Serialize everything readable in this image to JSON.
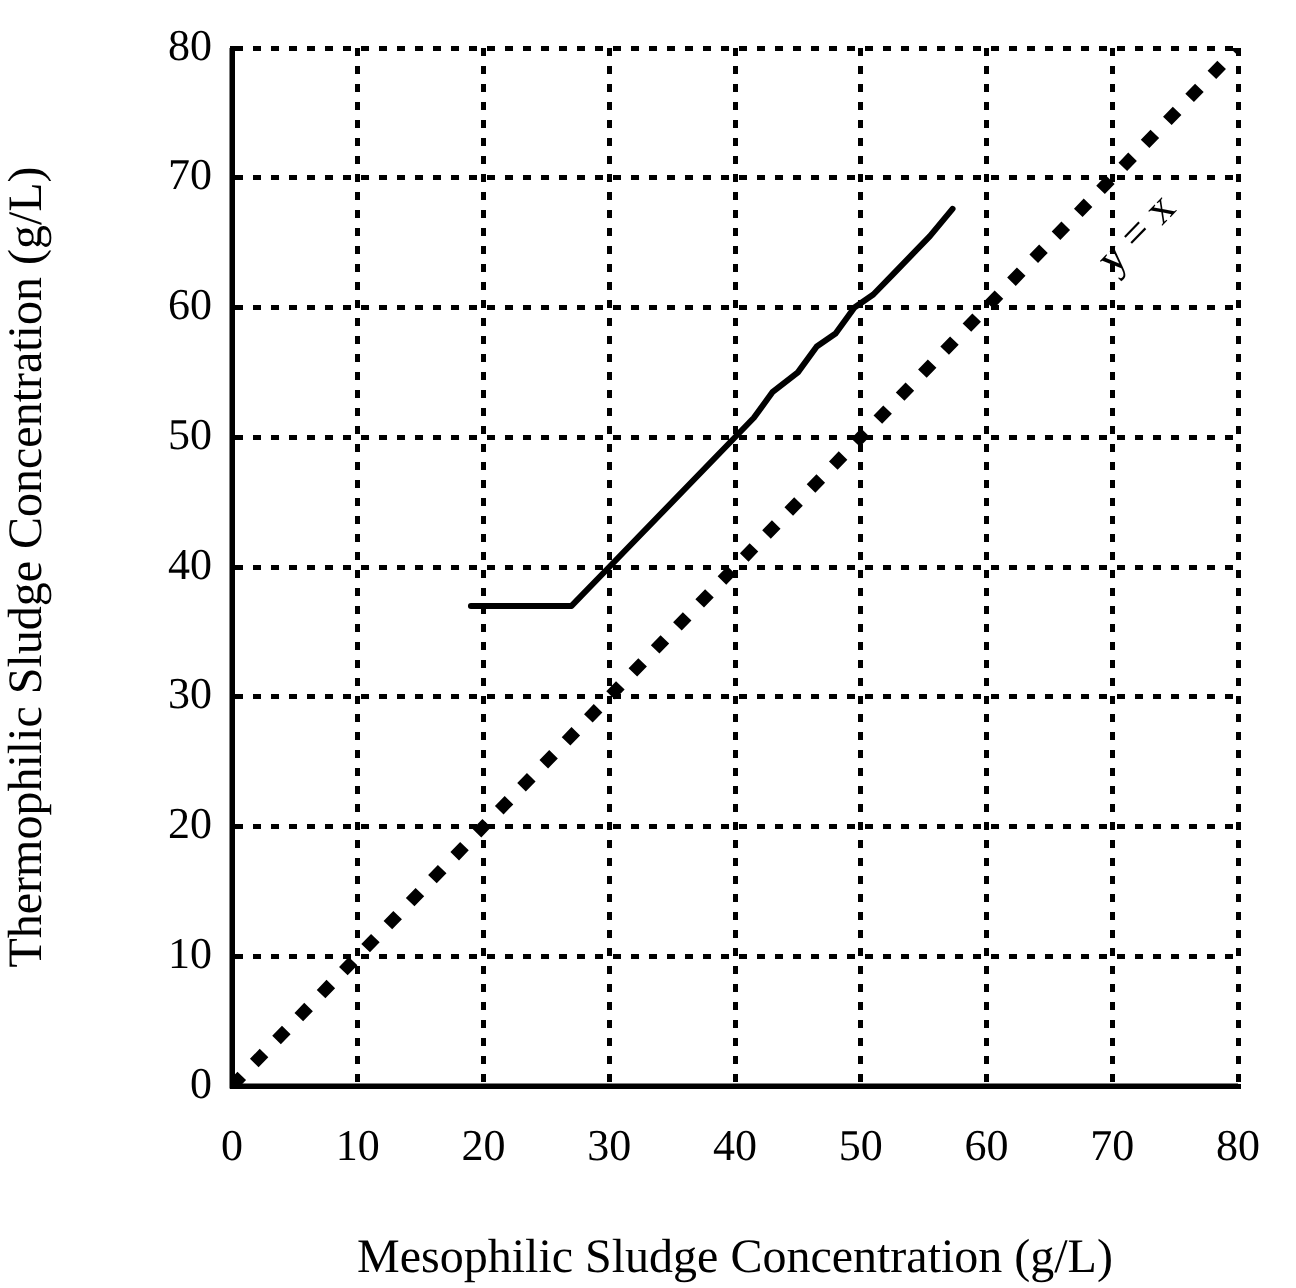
{
  "chart_data": {
    "type": "line",
    "xlabel": "Mesophilic Sludge Concentration (g/L)",
    "ylabel": "Thermophilic Sludge Concentration (g/L)",
    "xlim": [
      0,
      80
    ],
    "ylim": [
      0,
      80
    ],
    "xticks": [
      0,
      10,
      20,
      30,
      40,
      50,
      60,
      70,
      80
    ],
    "yticks": [
      0,
      10,
      20,
      30,
      40,
      50,
      60,
      70,
      80
    ],
    "grid": true,
    "legend": false,
    "marker": "none",
    "series": [
      {
        "color": "#000000",
        "line_style": "solid",
        "x": [
          19,
          27,
          30,
          40,
          41.5,
          43,
          45,
          46.5,
          48,
          49.5,
          51,
          52.5,
          54,
          55.5,
          57.3
        ],
        "values": [
          37,
          37,
          40,
          50,
          51.5,
          53.5,
          55,
          57,
          58,
          60,
          61,
          62.5,
          64,
          65.5,
          67.6
        ]
      },
      {
        "color": "#000000",
        "line_style": "dashed",
        "x": [
          0,
          80
        ],
        "values": [
          0,
          80
        ]
      }
    ],
    "annotations": [
      "y = x"
    ]
  }
}
